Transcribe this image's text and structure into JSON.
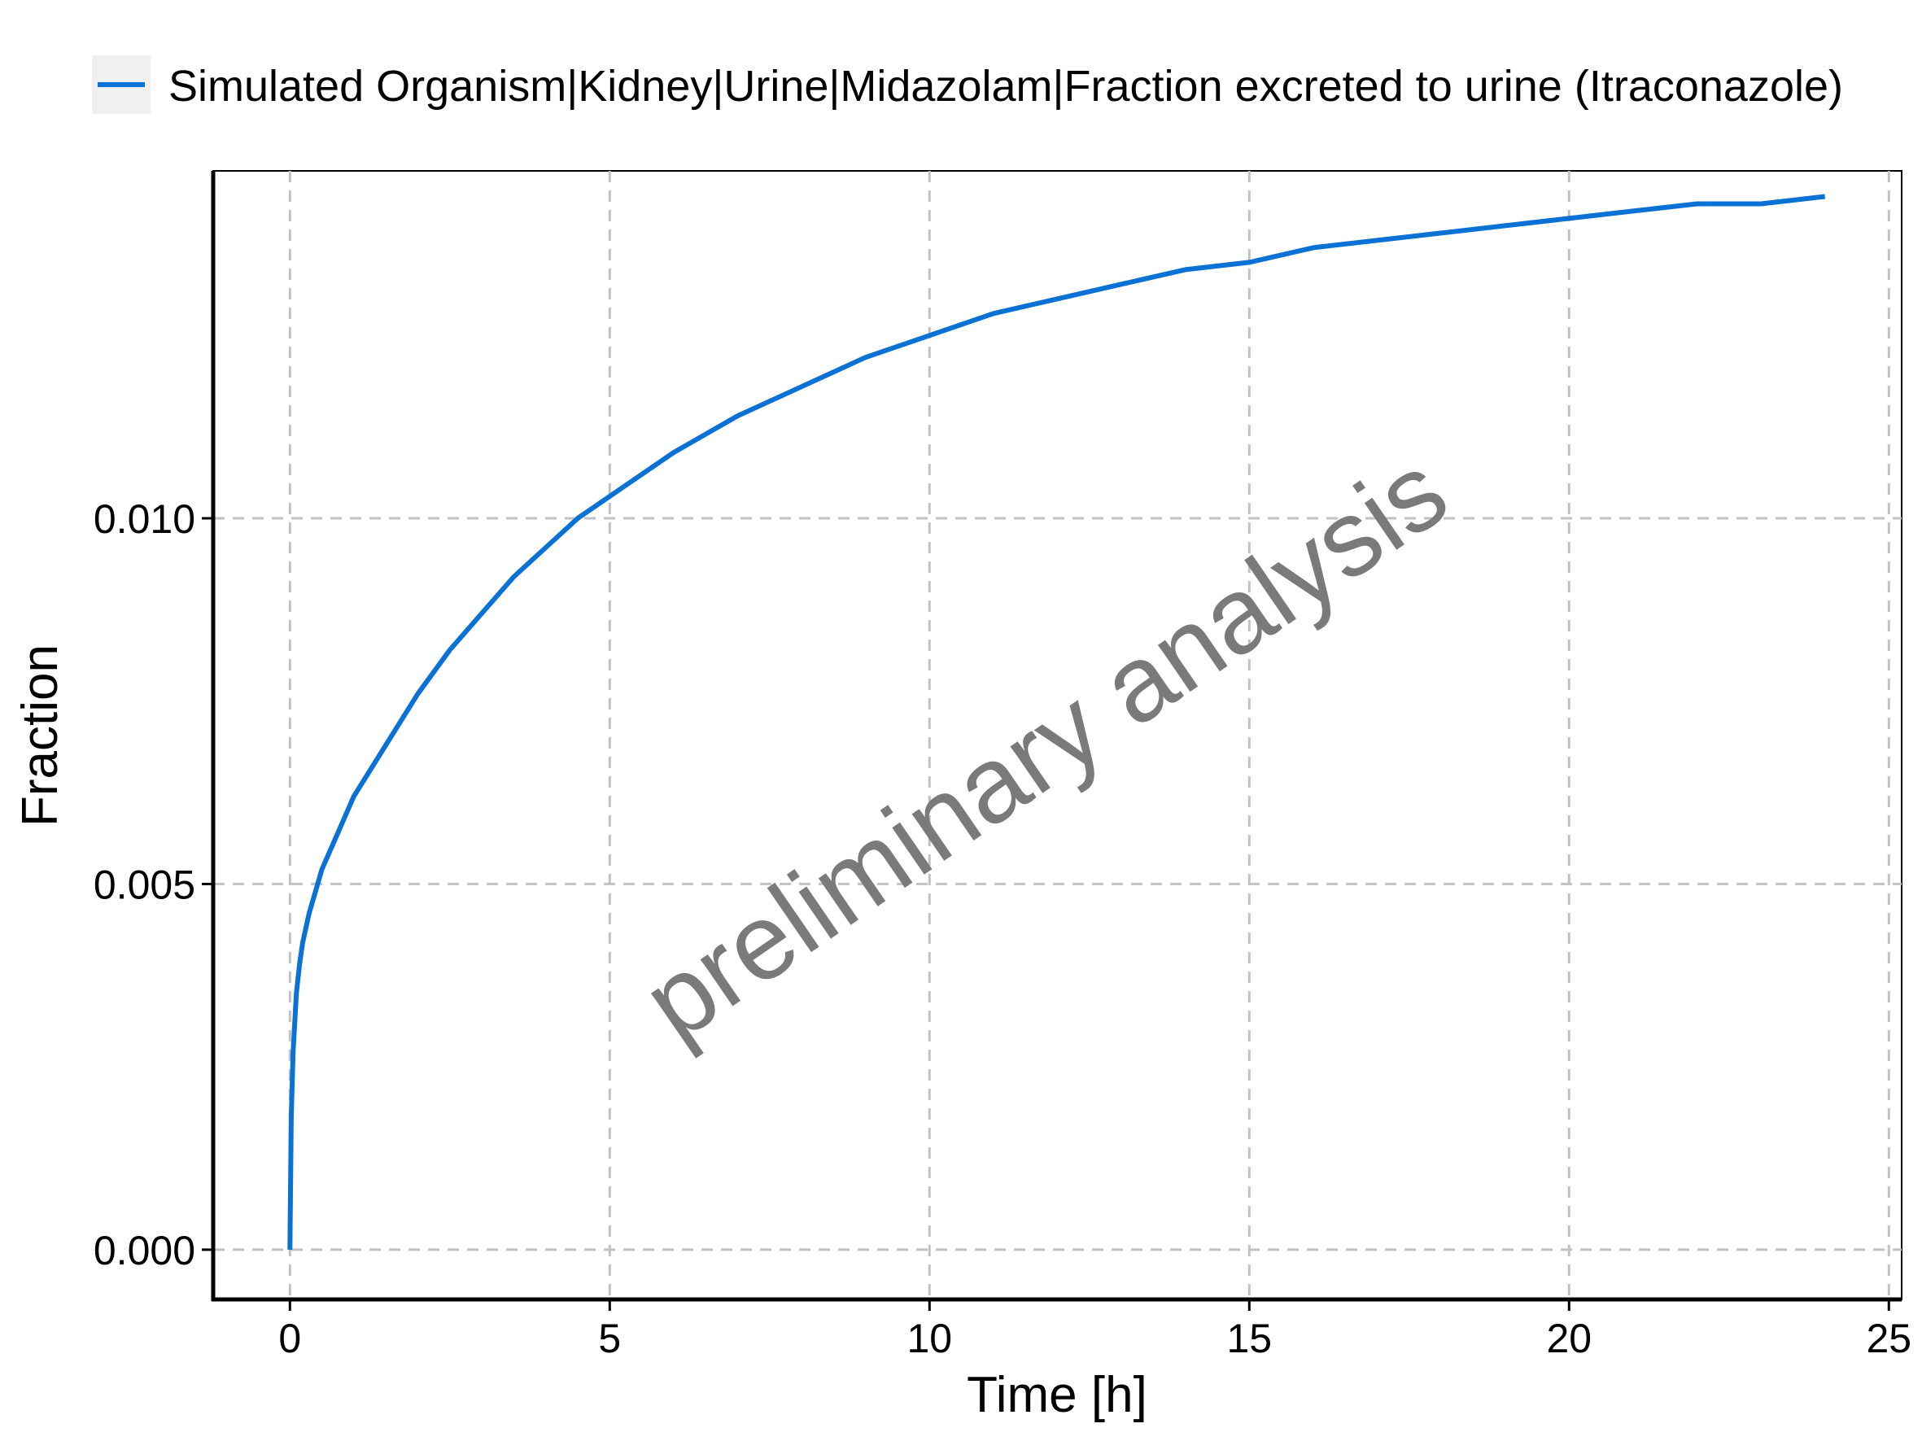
{
  "chart_data": {
    "type": "line",
    "title": "",
    "xlabel": "Time [h]",
    "ylabel": "Fraction",
    "xlim": [
      -1.2,
      25.2
    ],
    "ylim": [
      -0.00068,
      0.01475
    ],
    "x_ticks": [
      0,
      5,
      10,
      15,
      20,
      25
    ],
    "x_tick_labels": [
      "0",
      "5",
      "10",
      "15",
      "20",
      "25"
    ],
    "y_ticks": [
      0.0,
      0.005,
      0.01
    ],
    "y_tick_labels": [
      "0.000",
      "0.005",
      "0.010"
    ],
    "grid": true,
    "grid_style": "dashed",
    "legend_position": "top",
    "watermark": "preliminary analysis",
    "colors": {
      "series": "#0a72d4",
      "grid": "#c2c2c2",
      "axis": "#000000",
      "legend_key_bg": "#f0f0f0",
      "watermark": "#7a7a7a"
    },
    "series": [
      {
        "name": "Simulated Organism|Kidney|Urine|Midazolam|Fraction excreted to urine (Itraconazole)",
        "x": [
          0,
          0.02,
          0.05,
          0.1,
          0.15,
          0.2,
          0.3,
          0.4,
          0.5,
          0.75,
          1,
          1.5,
          2,
          2.5,
          3,
          3.5,
          4,
          4.5,
          5,
          6,
          7,
          8,
          9,
          10,
          11,
          12,
          13,
          14,
          15,
          16,
          17,
          18,
          19,
          20,
          21,
          22,
          23,
          24
        ],
        "y": [
          0.0,
          0.0018,
          0.0027,
          0.0035,
          0.0039,
          0.0042,
          0.0046,
          0.0049,
          0.0052,
          0.0057,
          0.0062,
          0.0069,
          0.0076,
          0.0082,
          0.0087,
          0.0092,
          0.0096,
          0.01,
          0.0103,
          0.0109,
          0.0114,
          0.0118,
          0.0122,
          0.0125,
          0.0128,
          0.013,
          0.0132,
          0.0134,
          0.0135,
          0.0137,
          0.0138,
          0.0139,
          0.014,
          0.0141,
          0.0142,
          0.0143,
          0.0143,
          0.0144
        ]
      }
    ]
  }
}
